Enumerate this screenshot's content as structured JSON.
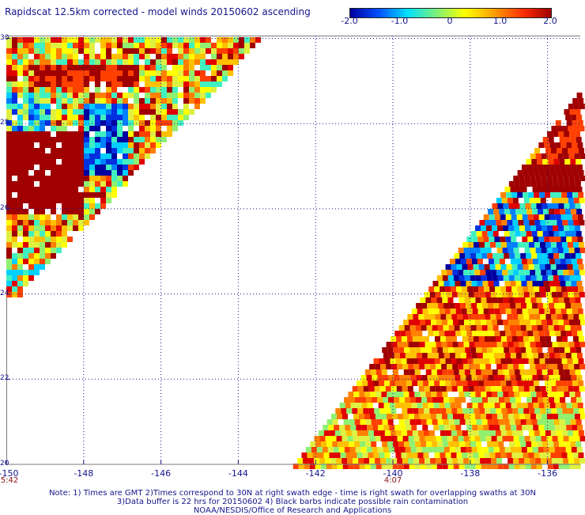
{
  "title": "Rapidscat 12.5km corrected - model winds 20150602 ascending",
  "colorbar": {
    "ticks": [
      "-2.0",
      "-1.0",
      "0",
      "1.0",
      "2.0"
    ],
    "colors": [
      "#0000a0",
      "#0050ff",
      "#00e0ff",
      "#7af07a",
      "#ffff00",
      "#ffa000",
      "#ff3000",
      "#a00000"
    ]
  },
  "map": {
    "lat_labels": [
      "30",
      "28",
      "26",
      "24",
      "22",
      "20"
    ],
    "lon_labels": [
      "-150",
      "-148",
      "-146",
      "-144",
      "-142",
      "-140",
      "-138",
      "-136"
    ],
    "lon_range": [
      -150,
      -135
    ],
    "lat_range": [
      20,
      30
    ],
    "grid": "dotted"
  },
  "times": [
    {
      "label": "5:42",
      "lon": -150
    },
    {
      "label": "4:07",
      "lon": -140
    }
  ],
  "notes": {
    "line1": "Note: 1) Times are GMT 2)Times correspond to 30N at right swath edge - time is right swath for overlapping swaths at 30N",
    "line2": "3)Data buffer is 22 hrs for 20150602 4) Black barbs indicate possible rain contamination",
    "line3": "NOAA/NESDIS/Office of Research and Applications"
  }
}
